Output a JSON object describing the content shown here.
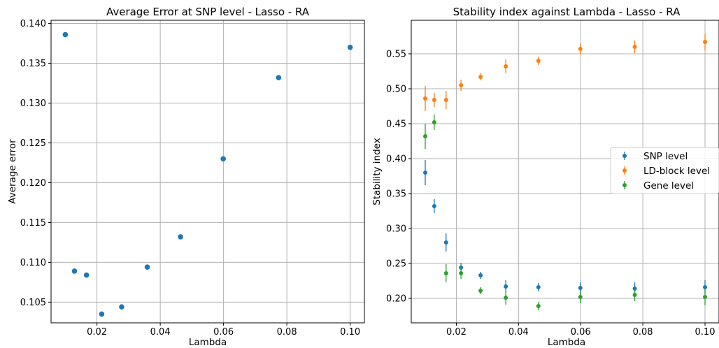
{
  "chart_data": [
    {
      "type": "scatter",
      "title": "Average Error at SNP level - Lasso - RA",
      "xlabel": "Lambda",
      "ylabel": "Average error",
      "xlim": [
        0.0055,
        0.1045
      ],
      "ylim": [
        0.1024,
        0.1404
      ],
      "xticks": [
        0.02,
        0.04,
        0.06,
        0.08,
        0.1
      ],
      "xtick_labels": [
        "0.02",
        "0.04",
        "0.06",
        "0.08",
        "0.10"
      ],
      "yticks": [
        0.105,
        0.11,
        0.115,
        0.12,
        0.125,
        0.13,
        0.135,
        0.14
      ],
      "ytick_labels": [
        "0.105",
        "0.110",
        "0.115",
        "0.120",
        "0.125",
        "0.130",
        "0.135",
        "0.140"
      ],
      "grid": true,
      "series": [
        {
          "color": "#1f77b4",
          "x": [
            0.01,
            0.0129,
            0.0167,
            0.0215,
            0.0278,
            0.0359,
            0.0464,
            0.0599,
            0.0774,
            0.1
          ],
          "y": [
            0.1386,
            0.1089,
            0.1084,
            0.1035,
            0.1044,
            0.1094,
            0.1132,
            0.123,
            0.1332,
            0.137
          ]
        }
      ]
    },
    {
      "type": "scatter",
      "title": "Stability index against Lambda - Lasso - RA",
      "xlabel": "Lambda",
      "ylabel": "Stability index",
      "xlim": [
        0.0055,
        0.1045
      ],
      "ylim": [
        0.165,
        0.598
      ],
      "xticks": [
        0.02,
        0.04,
        0.06,
        0.08,
        0.1
      ],
      "xtick_labels": [
        "0.02",
        "0.04",
        "0.06",
        "0.08",
        "0.10"
      ],
      "yticks": [
        0.2,
        0.25,
        0.3,
        0.35,
        0.4,
        0.45,
        0.5,
        0.55
      ],
      "ytick_labels": [
        "0.20",
        "0.25",
        "0.30",
        "0.35",
        "0.40",
        "0.45",
        "0.50",
        "0.55"
      ],
      "grid": true,
      "legend_position": "center-right",
      "series": [
        {
          "name": "SNP level",
          "color": "#1f77b4",
          "x": [
            0.01,
            0.0129,
            0.0167,
            0.0215,
            0.0278,
            0.0359,
            0.0464,
            0.0599,
            0.0774,
            0.1
          ],
          "y": [
            0.38,
            0.332,
            0.28,
            0.244,
            0.233,
            0.217,
            0.216,
            0.215,
            0.214,
            0.216
          ],
          "err": [
            0.018,
            0.01,
            0.013,
            0.007,
            0.005,
            0.009,
            0.006,
            0.008,
            0.009,
            0.01
          ]
        },
        {
          "name": "LD-block level",
          "color": "#ff7f0e",
          "x": [
            0.01,
            0.0129,
            0.0167,
            0.0215,
            0.0278,
            0.0359,
            0.0464,
            0.0599,
            0.0774,
            0.1
          ],
          "y": [
            0.486,
            0.484,
            0.484,
            0.505,
            0.517,
            0.532,
            0.54,
            0.557,
            0.56,
            0.567
          ],
          "err": [
            0.018,
            0.01,
            0.013,
            0.008,
            0.005,
            0.01,
            0.006,
            0.008,
            0.009,
            0.012
          ]
        },
        {
          "name": "Gene level",
          "color": "#2ca02c",
          "x": [
            0.01,
            0.0129,
            0.0167,
            0.0215,
            0.0278,
            0.0359,
            0.0464,
            0.0599,
            0.0774,
            0.1
          ],
          "y": [
            0.432,
            0.452,
            0.236,
            0.236,
            0.211,
            0.201,
            0.189,
            0.202,
            0.205,
            0.202
          ],
          "err": [
            0.018,
            0.011,
            0.013,
            0.008,
            0.005,
            0.01,
            0.006,
            0.009,
            0.009,
            0.012
          ]
        }
      ]
    }
  ]
}
